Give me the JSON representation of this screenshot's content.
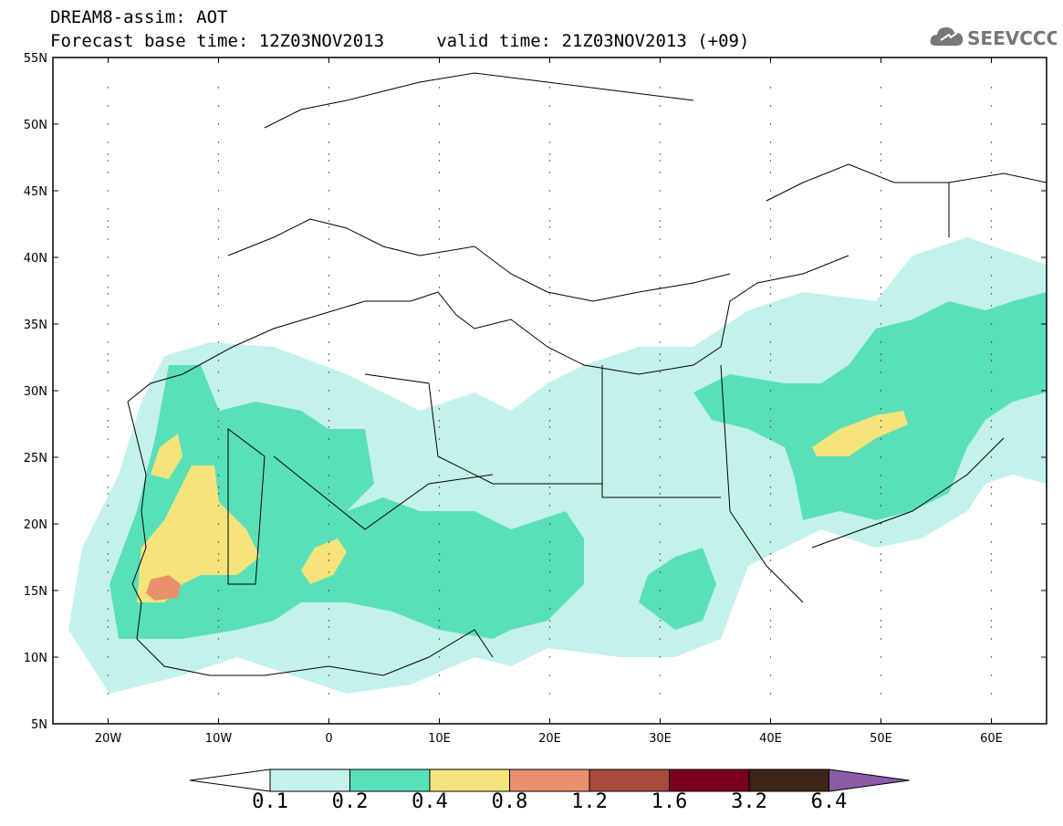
{
  "header": {
    "title_line1": "DREAM8-assim: AOT",
    "title_line2": "Forecast base time: 12Z03NOV2013     valid time: 21Z03NOV2013 (+09)",
    "logo_text": "SEEVCCC",
    "logo_icon": "cloud-icon"
  },
  "map": {
    "variable": "AOT",
    "lon_range": [
      -25,
      65
    ],
    "lat_range": [
      5,
      55
    ],
    "lat_ticks": [
      "5N",
      "10N",
      "15N",
      "20N",
      "25N",
      "30N",
      "35N",
      "40N",
      "45N",
      "50N",
      "55N"
    ],
    "lon_ticks": [
      "20W",
      "10W",
      "0",
      "10E",
      "20E",
      "30E",
      "40E",
      "50E",
      "60E"
    ],
    "colors": {
      "frame": "#000000",
      "coastline": "#000000",
      "grid_dots": "#000000"
    }
  },
  "colorbar": {
    "labels": [
      "0.1",
      "0.2",
      "0.4",
      "0.8",
      "1.2",
      "1.6",
      "3.2",
      "6.4"
    ],
    "colors": [
      "#c3f2ea",
      "#5ae0b8",
      "#f5e47a",
      "#e9906c",
      "#a84a3e",
      "#7a0020",
      "#3b2618",
      "#8a5ba8"
    ],
    "underflow_color": "#ffffff",
    "overflow_color": "#8a5ba8"
  }
}
